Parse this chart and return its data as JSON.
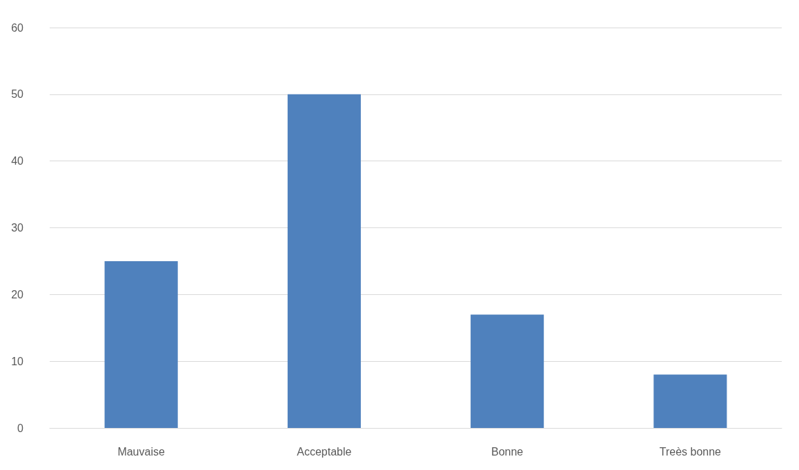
{
  "chart_data": {
    "type": "bar",
    "categories": [
      "Mauvaise",
      "Acceptable",
      "Bonne",
      "Treès bonne"
    ],
    "values": [
      25,
      50,
      17,
      8
    ],
    "color": "#4f81bd",
    "ylim": [
      0,
      60
    ],
    "yticks": [
      0,
      10,
      20,
      30,
      40,
      50,
      60
    ],
    "grid": "y"
  }
}
